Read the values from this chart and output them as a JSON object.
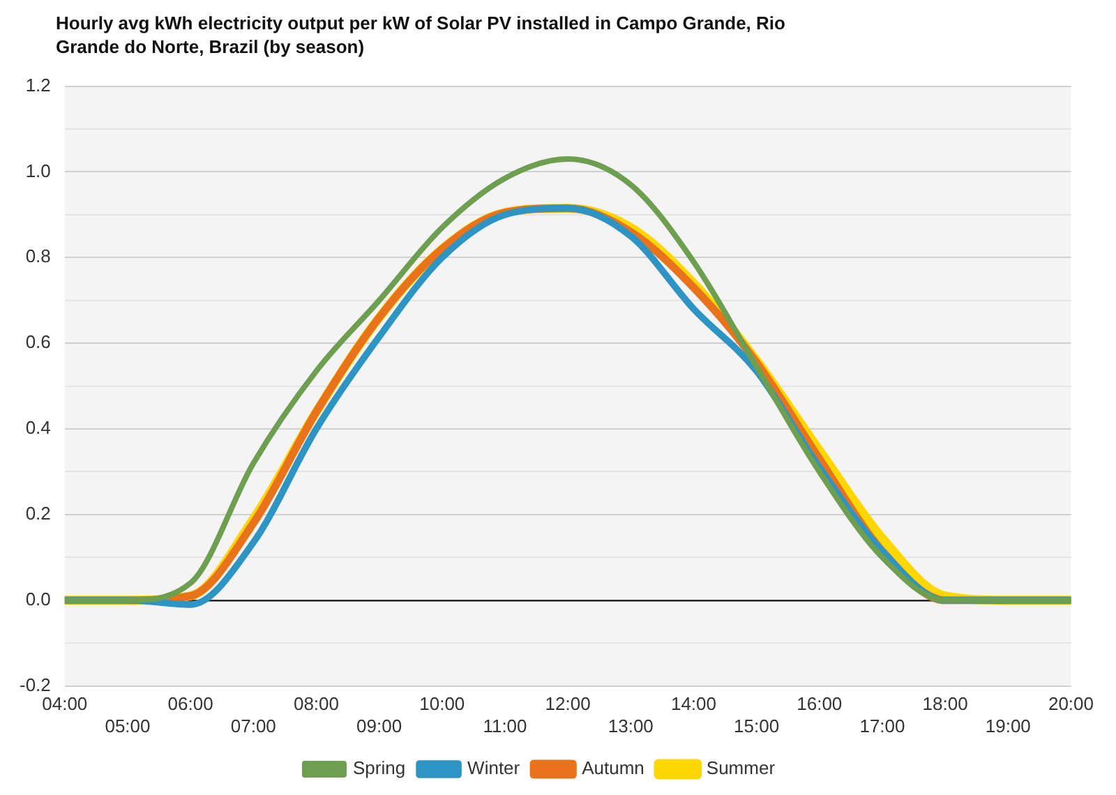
{
  "chart_data": {
    "type": "line",
    "title": "Hourly avg kWh electricity output per kW of Solar PV installed in Campo Grande, Rio Grande do Norte, Brazil (by season)",
    "categories": [
      "04:00",
      "05:00",
      "06:00",
      "07:00",
      "08:00",
      "09:00",
      "10:00",
      "11:00",
      "12:00",
      "13:00",
      "14:00",
      "15:00",
      "16:00",
      "17:00",
      "18:00",
      "19:00",
      "20:00"
    ],
    "series": [
      {
        "name": "Summer",
        "color": "#ffd700",
        "values": [
          0,
          0,
          0.01,
          0.19,
          0.44,
          0.66,
          0.82,
          0.905,
          0.915,
          0.87,
          0.74,
          0.56,
          0.35,
          0.145,
          0.01,
          0,
          0
        ]
      },
      {
        "name": "Autumn",
        "color": "#e8731a",
        "values": [
          0,
          0,
          0.01,
          0.18,
          0.44,
          0.66,
          0.82,
          0.905,
          0.915,
          0.86,
          0.73,
          0.555,
          0.33,
          0.115,
          0,
          0,
          0
        ]
      },
      {
        "name": "Winter",
        "color": "#2e94c4",
        "values": [
          0,
          0,
          -0.01,
          0.135,
          0.4,
          0.615,
          0.8,
          0.9,
          0.915,
          0.85,
          0.68,
          0.535,
          0.31,
          0.115,
          0,
          0,
          0
        ]
      },
      {
        "name": "Spring",
        "color": "#6e9e4f",
        "values": [
          0,
          0,
          0.04,
          0.32,
          0.535,
          0.7,
          0.87,
          0.985,
          1.03,
          0.97,
          0.79,
          0.545,
          0.3,
          0.1,
          0,
          0,
          0
        ]
      }
    ],
    "ylim": [
      -0.2,
      1.2
    ],
    "yticks": [
      {
        "value": -0.2,
        "label": "-0.2"
      },
      {
        "value": -0.1,
        "label": null
      },
      {
        "value": 0,
        "label": "0.0"
      },
      {
        "value": 0.1,
        "label": null
      },
      {
        "value": 0.2,
        "label": "0.2"
      },
      {
        "value": 0.3,
        "label": null
      },
      {
        "value": 0.4,
        "label": "0.4"
      },
      {
        "value": 0.5,
        "label": null
      },
      {
        "value": 0.6,
        "label": "0.6"
      },
      {
        "value": 0.7,
        "label": null
      },
      {
        "value": 0.8,
        "label": "0.8"
      },
      {
        "value": 0.9,
        "label": null
      },
      {
        "value": 1,
        "label": "1.0"
      },
      {
        "value": 1.1,
        "label": null
      },
      {
        "value": 1.2,
        "label": "1.2"
      }
    ],
    "grid": "y",
    "legend": "bottom",
    "marker": "none",
    "line_style": "solid"
  }
}
